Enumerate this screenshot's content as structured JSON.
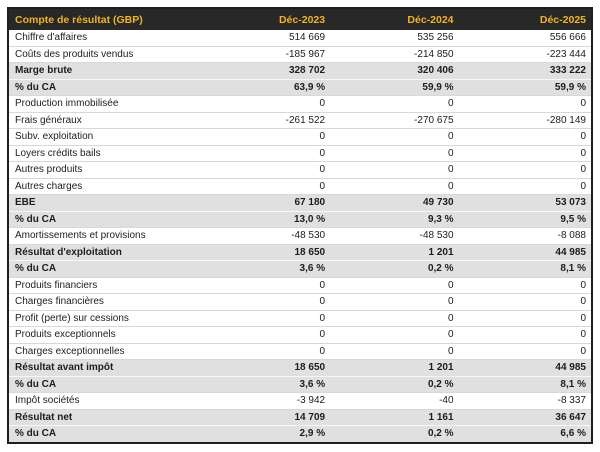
{
  "chart_data": {
    "type": "table",
    "title": "Compte de résultat (GBP)",
    "columns": [
      "Déc-2023",
      "Déc-2024",
      "Déc-2025"
    ],
    "rows": [
      {
        "label": "Chiffre d'affaires",
        "values": [
          "514 669",
          "535 256",
          "556 666"
        ],
        "style": "normal"
      },
      {
        "label": "Coûts des produits vendus",
        "values": [
          "-185 967",
          "-214 850",
          "-223 444"
        ],
        "style": "normal"
      },
      {
        "label": "Marge brute",
        "values": [
          "328 702",
          "320 406",
          "333 222"
        ],
        "style": "highlight"
      },
      {
        "label": "% du CA",
        "values": [
          "63,9 %",
          "59,9 %",
          "59,9 %"
        ],
        "style": "highlight"
      },
      {
        "label": "Production immobilisée",
        "values": [
          "0",
          "0",
          "0"
        ],
        "style": "normal"
      },
      {
        "label": "Frais généraux",
        "values": [
          "-261 522",
          "-270 675",
          "-280 149"
        ],
        "style": "normal"
      },
      {
        "label": "Subv. exploitation",
        "values": [
          "0",
          "0",
          "0"
        ],
        "style": "normal"
      },
      {
        "label": "Loyers crédits bails",
        "values": [
          "0",
          "0",
          "0"
        ],
        "style": "normal"
      },
      {
        "label": "Autres produits",
        "values": [
          "0",
          "0",
          "0"
        ],
        "style": "normal"
      },
      {
        "label": "Autres charges",
        "values": [
          "0",
          "0",
          "0"
        ],
        "style": "normal"
      },
      {
        "label": "EBE",
        "values": [
          "67 180",
          "49 730",
          "53 073"
        ],
        "style": "highlight"
      },
      {
        "label": "% du CA",
        "values": [
          "13,0 %",
          "9,3 %",
          "9,5 %"
        ],
        "style": "highlight"
      },
      {
        "label": "Amortissements et provisions",
        "values": [
          "-48 530",
          "-48 530",
          "-8 088"
        ],
        "style": "normal"
      },
      {
        "label": "Résultat d'exploitation",
        "values": [
          "18 650",
          "1 201",
          "44 985"
        ],
        "style": "highlight"
      },
      {
        "label": "% du CA",
        "values": [
          "3,6 %",
          "0,2 %",
          "8,1 %"
        ],
        "style": "highlight"
      },
      {
        "label": "Produits financiers",
        "values": [
          "0",
          "0",
          "0"
        ],
        "style": "normal"
      },
      {
        "label": "Charges financières",
        "values": [
          "0",
          "0",
          "0"
        ],
        "style": "normal"
      },
      {
        "label": "Profit (perte) sur cessions",
        "values": [
          "0",
          "0",
          "0"
        ],
        "style": "normal"
      },
      {
        "label": "Produits exceptionnels",
        "values": [
          "0",
          "0",
          "0"
        ],
        "style": "normal"
      },
      {
        "label": "Charges exceptionnelles",
        "values": [
          "0",
          "0",
          "0"
        ],
        "style": "normal"
      },
      {
        "label": "Résultat avant impôt",
        "values": [
          "18 650",
          "1 201",
          "44 985"
        ],
        "style": "highlight"
      },
      {
        "label": "% du CA",
        "values": [
          "3,6 %",
          "0,2 %",
          "8,1 %"
        ],
        "style": "highlight"
      },
      {
        "label": "Impôt sociétés",
        "values": [
          "-3 942",
          "-40",
          "-8 337"
        ],
        "style": "normal"
      },
      {
        "label": "Résultat net",
        "values": [
          "14 709",
          "1 161",
          "36 647"
        ],
        "style": "highlight"
      },
      {
        "label": "% du CA",
        "values": [
          "2,9 %",
          "0,2 %",
          "6,6 %"
        ],
        "style": "highlight"
      }
    ]
  },
  "colors": {
    "header_bg": "#282828",
    "header_text": "#F0B41E",
    "highlight_bg": "#E0E0E0",
    "row_border": "#D8D8D8",
    "outer_border": "#1F1F1F",
    "body_text": "#1D1D1D"
  }
}
